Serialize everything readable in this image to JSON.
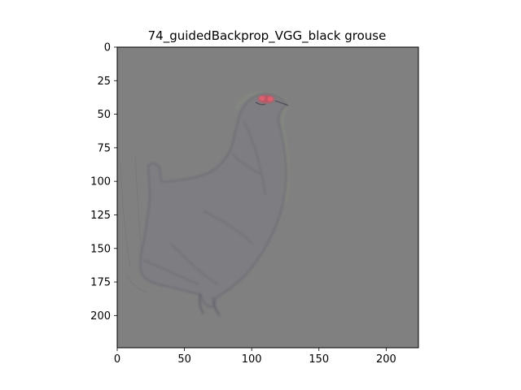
{
  "chart_data": {
    "type": "heatmap",
    "title": "74_guidedBackprop_VGG_black grouse",
    "xlabel": "",
    "ylabel": "",
    "xlim": [
      0,
      224
    ],
    "ylim": [
      224,
      0
    ],
    "x_ticks": [
      0,
      50,
      100,
      150,
      200
    ],
    "y_ticks": [
      0,
      25,
      50,
      75,
      100,
      125,
      150,
      175,
      200
    ],
    "background_color": "#808080",
    "grid": false,
    "legend": "none"
  }
}
